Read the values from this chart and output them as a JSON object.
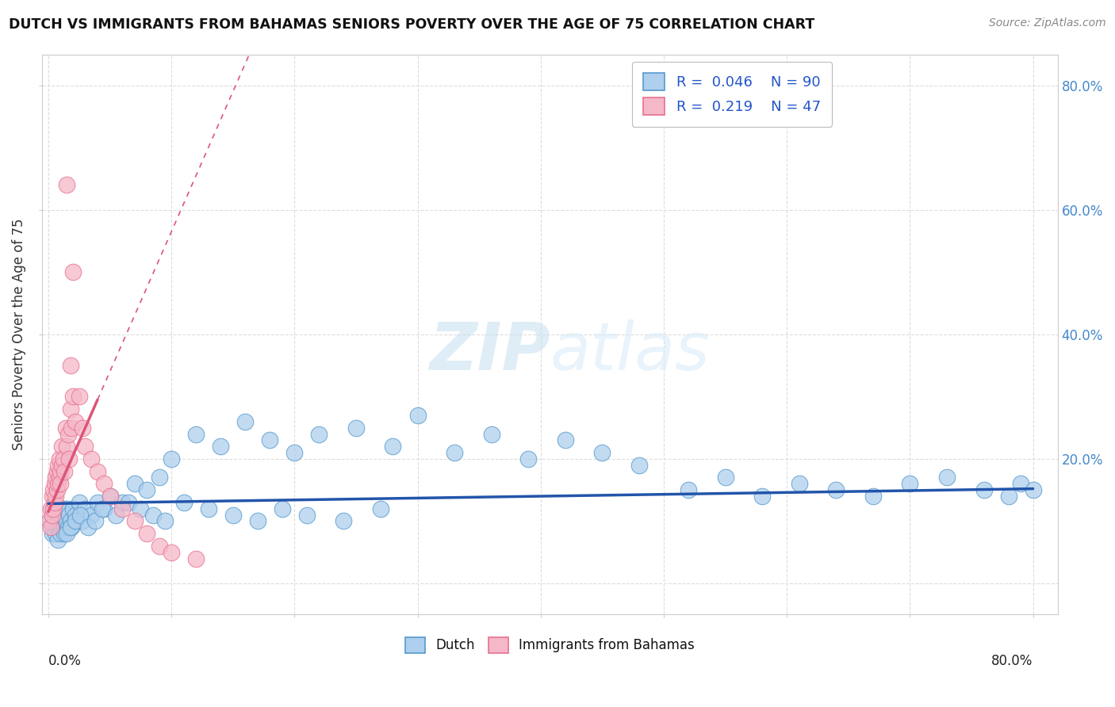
{
  "title": "DUTCH VS IMMIGRANTS FROM BAHAMAS SENIORS POVERTY OVER THE AGE OF 75 CORRELATION CHART",
  "source": "Source: ZipAtlas.com",
  "ylabel": "Seniors Poverty Over the Age of 75",
  "legend_dutch_R": "0.046",
  "legend_dutch_N": "90",
  "legend_bahamas_R": "0.219",
  "legend_bahamas_N": "47",
  "dutch_color": "#aecfed",
  "bahamas_color": "#f5b8c8",
  "dutch_edge_color": "#5599cc",
  "bahamas_edge_color": "#e87090",
  "dutch_line_color": "#2255aa",
  "bahamas_line_color": "#dd5577",
  "background_color": "#ffffff",
  "watermark_color": "#d0e8f8",
  "xlim": [
    0.0,
    0.8
  ],
  "ylim": [
    0.0,
    0.8
  ],
  "dutch_points_x": [
    0.002,
    0.003,
    0.004,
    0.004,
    0.005,
    0.005,
    0.006,
    0.006,
    0.007,
    0.007,
    0.008,
    0.008,
    0.009,
    0.009,
    0.01,
    0.01,
    0.011,
    0.011,
    0.012,
    0.012,
    0.013,
    0.013,
    0.014,
    0.015,
    0.015,
    0.016,
    0.017,
    0.018,
    0.019,
    0.02,
    0.022,
    0.025,
    0.028,
    0.03,
    0.035,
    0.04,
    0.045,
    0.05,
    0.06,
    0.07,
    0.08,
    0.09,
    0.1,
    0.12,
    0.14,
    0.16,
    0.18,
    0.2,
    0.22,
    0.25,
    0.28,
    0.3,
    0.33,
    0.36,
    0.39,
    0.42,
    0.45,
    0.48,
    0.52,
    0.55,
    0.58,
    0.61,
    0.64,
    0.67,
    0.7,
    0.73,
    0.76,
    0.78,
    0.79,
    0.8,
    0.015,
    0.018,
    0.022,
    0.026,
    0.032,
    0.038,
    0.044,
    0.055,
    0.065,
    0.075,
    0.085,
    0.095,
    0.11,
    0.13,
    0.15,
    0.17,
    0.19,
    0.21,
    0.24,
    0.27
  ],
  "dutch_points_y": [
    0.1,
    0.08,
    0.12,
    0.09,
    0.11,
    0.13,
    0.1,
    0.08,
    0.09,
    0.12,
    0.1,
    0.07,
    0.11,
    0.09,
    0.1,
    0.08,
    0.09,
    0.11,
    0.1,
    0.12,
    0.09,
    0.08,
    0.11,
    0.1,
    0.12,
    0.09,
    0.11,
    0.1,
    0.09,
    0.12,
    0.11,
    0.13,
    0.1,
    0.12,
    0.11,
    0.13,
    0.12,
    0.14,
    0.13,
    0.16,
    0.15,
    0.17,
    0.2,
    0.24,
    0.22,
    0.26,
    0.23,
    0.21,
    0.24,
    0.25,
    0.22,
    0.27,
    0.21,
    0.24,
    0.2,
    0.23,
    0.21,
    0.19,
    0.15,
    0.17,
    0.14,
    0.16,
    0.15,
    0.14,
    0.16,
    0.17,
    0.15,
    0.14,
    0.16,
    0.15,
    0.08,
    0.09,
    0.1,
    0.11,
    0.09,
    0.1,
    0.12,
    0.11,
    0.13,
    0.12,
    0.11,
    0.1,
    0.13,
    0.12,
    0.11,
    0.1,
    0.12,
    0.11,
    0.1,
    0.12
  ],
  "bahamas_points_x": [
    0.001,
    0.002,
    0.002,
    0.003,
    0.003,
    0.004,
    0.004,
    0.005,
    0.005,
    0.006,
    0.006,
    0.007,
    0.007,
    0.008,
    0.008,
    0.009,
    0.009,
    0.01,
    0.01,
    0.011,
    0.011,
    0.012,
    0.013,
    0.014,
    0.015,
    0.016,
    0.017,
    0.018,
    0.019,
    0.02,
    0.022,
    0.025,
    0.028,
    0.03,
    0.035,
    0.04,
    0.045,
    0.05,
    0.06,
    0.07,
    0.08,
    0.09,
    0.1,
    0.12,
    0.015,
    0.018,
    0.02
  ],
  "bahamas_points_y": [
    0.1,
    0.12,
    0.09,
    0.11,
    0.14,
    0.12,
    0.15,
    0.13,
    0.16,
    0.14,
    0.17,
    0.15,
    0.18,
    0.16,
    0.19,
    0.17,
    0.2,
    0.18,
    0.16,
    0.19,
    0.22,
    0.2,
    0.18,
    0.25,
    0.22,
    0.24,
    0.2,
    0.28,
    0.25,
    0.3,
    0.26,
    0.3,
    0.25,
    0.22,
    0.2,
    0.18,
    0.16,
    0.14,
    0.12,
    0.1,
    0.08,
    0.06,
    0.05,
    0.04,
    0.64,
    0.35,
    0.5
  ]
}
